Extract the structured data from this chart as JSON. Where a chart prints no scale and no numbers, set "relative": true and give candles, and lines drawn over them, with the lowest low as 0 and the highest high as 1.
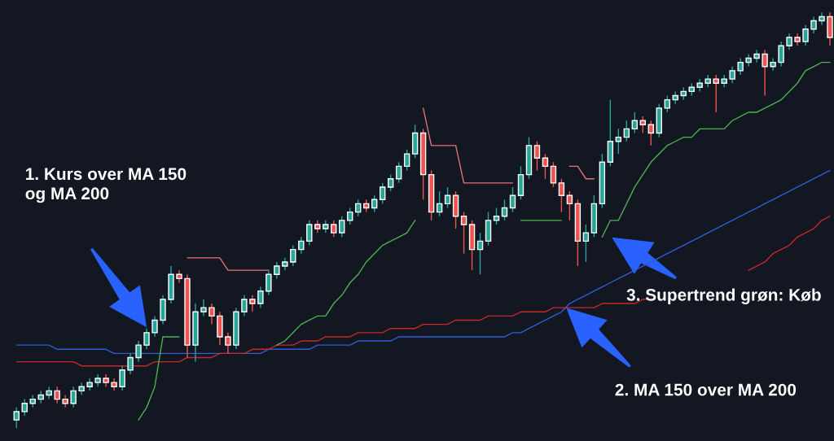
{
  "chart_data": {
    "type": "candlestick",
    "relative": true,
    "legend": false,
    "categories": [
      null,
      null,
      null,
      null,
      null,
      null,
      null,
      null,
      null,
      null,
      null,
      null,
      null,
      null,
      null,
      null,
      null,
      null,
      null,
      null,
      null,
      null,
      null,
      null,
      null,
      null,
      null,
      null,
      null,
      null,
      null,
      null,
      null,
      null,
      null,
      null,
      null,
      null,
      null,
      null,
      null,
      null,
      null,
      null,
      null,
      null,
      null,
      null,
      null,
      null,
      null,
      null,
      null,
      null,
      null,
      null,
      null,
      null,
      null,
      null,
      null,
      null,
      null,
      null,
      null,
      null,
      null,
      null,
      null,
      null,
      null,
      null,
      null,
      null,
      null,
      null,
      null,
      null,
      null,
      null,
      null,
      null,
      null,
      null,
      null,
      null,
      null,
      null,
      null,
      null,
      null,
      null,
      null,
      null,
      null,
      null,
      null,
      null,
      null,
      null,
      null
    ],
    "ohlc": [
      [
        0.02,
        0.05,
        0.0,
        0.04
      ],
      [
        0.04,
        0.07,
        0.03,
        0.06
      ],
      [
        0.06,
        0.08,
        0.05,
        0.07
      ],
      [
        0.07,
        0.09,
        0.06,
        0.08
      ],
      [
        0.08,
        0.1,
        0.07,
        0.09
      ],
      [
        0.09,
        0.1,
        0.06,
        0.07
      ],
      [
        0.07,
        0.08,
        0.05,
        0.06
      ],
      [
        0.06,
        0.1,
        0.05,
        0.09
      ],
      [
        0.09,
        0.11,
        0.08,
        0.1
      ],
      [
        0.1,
        0.12,
        0.09,
        0.11
      ],
      [
        0.11,
        0.13,
        0.1,
        0.12
      ],
      [
        0.12,
        0.13,
        0.1,
        0.11
      ],
      [
        0.11,
        0.12,
        0.09,
        0.1
      ],
      [
        0.1,
        0.15,
        0.09,
        0.14
      ],
      [
        0.14,
        0.18,
        0.13,
        0.17
      ],
      [
        0.17,
        0.21,
        0.16,
        0.2
      ],
      [
        0.2,
        0.24,
        0.19,
        0.23
      ],
      [
        0.23,
        0.27,
        0.22,
        0.26
      ],
      [
        0.26,
        0.32,
        0.25,
        0.31
      ],
      [
        0.31,
        0.39,
        0.3,
        0.37
      ],
      [
        0.37,
        0.38,
        0.35,
        0.36
      ],
      [
        0.36,
        0.37,
        0.17,
        0.2
      ],
      [
        0.2,
        0.3,
        0.16,
        0.28
      ],
      [
        0.28,
        0.31,
        0.27,
        0.29
      ],
      [
        0.29,
        0.3,
        0.25,
        0.27
      ],
      [
        0.27,
        0.28,
        0.2,
        0.22
      ],
      [
        0.22,
        0.23,
        0.18,
        0.2
      ],
      [
        0.2,
        0.29,
        0.19,
        0.28
      ],
      [
        0.28,
        0.32,
        0.27,
        0.31
      ],
      [
        0.31,
        0.32,
        0.28,
        0.3
      ],
      [
        0.3,
        0.34,
        0.29,
        0.33
      ],
      [
        0.33,
        0.38,
        0.32,
        0.37
      ],
      [
        0.37,
        0.4,
        0.36,
        0.39
      ],
      [
        0.39,
        0.41,
        0.38,
        0.4
      ],
      [
        0.4,
        0.44,
        0.39,
        0.43
      ],
      [
        0.43,
        0.46,
        0.42,
        0.45
      ],
      [
        0.45,
        0.5,
        0.44,
        0.49
      ],
      [
        0.49,
        0.5,
        0.47,
        0.48
      ],
      [
        0.48,
        0.5,
        0.47,
        0.49
      ],
      [
        0.49,
        0.5,
        0.46,
        0.47
      ],
      [
        0.47,
        0.51,
        0.46,
        0.5
      ],
      [
        0.5,
        0.53,
        0.49,
        0.52
      ],
      [
        0.52,
        0.55,
        0.51,
        0.54
      ],
      [
        0.54,
        0.55,
        0.52,
        0.53
      ],
      [
        0.53,
        0.56,
        0.52,
        0.55
      ],
      [
        0.55,
        0.59,
        0.54,
        0.58
      ],
      [
        0.58,
        0.61,
        0.57,
        0.6
      ],
      [
        0.6,
        0.64,
        0.59,
        0.63
      ],
      [
        0.63,
        0.67,
        0.62,
        0.66
      ],
      [
        0.66,
        0.73,
        0.65,
        0.71
      ],
      [
        0.71,
        0.72,
        0.55,
        0.61
      ],
      [
        0.61,
        0.62,
        0.5,
        0.52
      ],
      [
        0.52,
        0.57,
        0.51,
        0.54
      ],
      [
        0.54,
        0.58,
        0.53,
        0.56
      ],
      [
        0.56,
        0.57,
        0.48,
        0.51
      ],
      [
        0.51,
        0.52,
        0.42,
        0.49
      ],
      [
        0.49,
        0.5,
        0.38,
        0.43
      ],
      [
        0.43,
        0.47,
        0.37,
        0.45
      ],
      [
        0.45,
        0.52,
        0.44,
        0.5
      ],
      [
        0.5,
        0.53,
        0.49,
        0.51
      ],
      [
        0.51,
        0.55,
        0.5,
        0.53
      ],
      [
        0.53,
        0.58,
        0.52,
        0.56
      ],
      [
        0.56,
        0.63,
        0.55,
        0.61
      ],
      [
        0.61,
        0.7,
        0.6,
        0.68
      ],
      [
        0.68,
        0.69,
        0.62,
        0.65
      ],
      [
        0.65,
        0.66,
        0.6,
        0.63
      ],
      [
        0.63,
        0.64,
        0.58,
        0.59
      ],
      [
        0.59,
        0.6,
        0.52,
        0.56
      ],
      [
        0.56,
        0.57,
        0.5,
        0.54
      ],
      [
        0.54,
        0.55,
        0.39,
        0.45
      ],
      [
        0.45,
        0.49,
        0.4,
        0.47
      ],
      [
        0.47,
        0.56,
        0.46,
        0.54
      ],
      [
        0.54,
        0.66,
        0.53,
        0.64
      ],
      [
        0.64,
        0.79,
        0.63,
        0.69
      ],
      [
        0.69,
        0.72,
        0.66,
        0.7
      ],
      [
        0.7,
        0.74,
        0.69,
        0.72
      ],
      [
        0.72,
        0.76,
        0.71,
        0.74
      ],
      [
        0.74,
        0.75,
        0.71,
        0.73
      ],
      [
        0.73,
        0.74,
        0.68,
        0.71
      ],
      [
        0.71,
        0.78,
        0.7,
        0.77
      ],
      [
        0.77,
        0.8,
        0.76,
        0.79
      ],
      [
        0.79,
        0.81,
        0.78,
        0.8
      ],
      [
        0.8,
        0.82,
        0.79,
        0.81
      ],
      [
        0.81,
        0.83,
        0.8,
        0.82
      ],
      [
        0.82,
        0.84,
        0.81,
        0.83
      ],
      [
        0.83,
        0.85,
        0.82,
        0.84
      ],
      [
        0.84,
        0.85,
        0.76,
        0.83
      ],
      [
        0.83,
        0.85,
        0.82,
        0.84
      ],
      [
        0.84,
        0.87,
        0.83,
        0.86
      ],
      [
        0.86,
        0.89,
        0.85,
        0.88
      ],
      [
        0.88,
        0.9,
        0.87,
        0.89
      ],
      [
        0.89,
        0.91,
        0.88,
        0.9
      ],
      [
        0.9,
        0.91,
        0.8,
        0.87
      ],
      [
        0.87,
        0.89,
        0.86,
        0.88
      ],
      [
        0.88,
        0.93,
        0.87,
        0.92
      ],
      [
        0.92,
        0.95,
        0.91,
        0.94
      ],
      [
        0.94,
        0.95,
        0.92,
        0.93
      ],
      [
        0.93,
        0.97,
        0.92,
        0.96
      ],
      [
        0.96,
        0.99,
        0.95,
        0.98
      ],
      [
        0.98,
        1.0,
        0.97,
        0.99
      ],
      [
        0.99,
        1.0,
        0.92,
        0.94
      ]
    ],
    "series": [
      {
        "type": "line",
        "color": "#2f5bd8",
        "values": [
          0.2,
          0.2,
          0.2,
          0.2,
          0.2,
          0.19,
          0.19,
          0.19,
          0.19,
          0.19,
          0.19,
          0.19,
          0.18,
          0.18,
          0.18,
          0.18,
          0.18,
          0.18,
          0.18,
          0.18,
          0.18,
          0.18,
          0.18,
          0.18,
          0.18,
          0.18,
          0.18,
          0.18,
          0.18,
          0.18,
          0.18,
          0.19,
          0.19,
          0.19,
          0.19,
          0.19,
          0.19,
          0.2,
          0.2,
          0.2,
          0.2,
          0.2,
          0.21,
          0.21,
          0.21,
          0.21,
          0.21,
          0.22,
          0.22,
          0.22,
          0.22,
          0.22,
          0.22,
          0.22,
          0.22,
          0.22,
          0.22,
          0.22,
          0.22,
          0.22,
          0.22,
          0.23,
          0.23,
          0.24,
          0.25,
          0.26,
          0.27,
          0.28,
          0.3,
          0.31,
          0.32,
          0.33,
          0.34,
          0.35,
          0.36,
          0.37,
          0.38,
          0.39,
          0.4,
          0.41,
          0.42,
          0.43,
          0.44,
          0.45,
          0.46,
          0.47,
          0.48,
          0.49,
          0.5,
          0.51,
          0.52,
          0.53,
          0.54,
          0.55,
          0.56,
          0.57,
          0.58,
          0.59,
          0.6,
          0.61,
          0.62
        ]
      },
      {
        "type": "line",
        "color": "#c62828",
        "values": [
          0.16,
          0.16,
          0.16,
          0.16,
          0.16,
          0.16,
          0.16,
          0.16,
          0.15,
          0.15,
          0.15,
          0.15,
          0.15,
          0.15,
          0.15,
          0.15,
          0.15,
          0.16,
          0.16,
          0.16,
          0.16,
          0.17,
          0.17,
          0.17,
          0.17,
          0.18,
          0.18,
          0.18,
          0.18,
          0.19,
          0.19,
          0.19,
          0.2,
          0.2,
          0.2,
          0.21,
          0.21,
          0.21,
          0.22,
          0.22,
          0.22,
          0.22,
          0.23,
          0.23,
          0.23,
          0.23,
          0.24,
          0.24,
          0.24,
          0.24,
          0.25,
          0.25,
          0.25,
          0.25,
          0.26,
          0.26,
          0.26,
          0.26,
          0.27,
          0.27,
          0.27,
          0.27,
          0.28,
          0.28,
          0.28,
          0.28,
          0.29,
          0.29,
          0.29,
          0.29,
          0.29,
          0.29,
          0.3,
          0.3,
          0.3,
          0.3,
          0.3,
          0.31,
          0.31,
          null,
          null,
          null,
          null,
          null,
          null,
          null,
          null,
          null,
          null,
          null,
          0.38,
          0.39,
          0.4,
          0.42,
          0.43,
          0.44,
          0.46,
          0.47,
          0.48,
          0.5,
          0.51
        ]
      },
      {
        "type": "step",
        "color": "#4caf50",
        "values": [
          null,
          null,
          null,
          null,
          null,
          null,
          null,
          null,
          null,
          null,
          null,
          null,
          null,
          null,
          null,
          0.02,
          0.05,
          0.1,
          0.22,
          0.22,
          0.22,
          null,
          null,
          null,
          null,
          null,
          null,
          null,
          null,
          null,
          null,
          null,
          0.2,
          0.21,
          0.23,
          0.25,
          0.26,
          0.27,
          0.27,
          0.3,
          0.32,
          0.35,
          0.37,
          0.4,
          0.42,
          0.44,
          0.45,
          0.46,
          0.47,
          0.5,
          null,
          null,
          null,
          null,
          null,
          null,
          null,
          null,
          null,
          null,
          null,
          null,
          0.5,
          0.5,
          0.5,
          0.5,
          0.5,
          0.5,
          null,
          null,
          null,
          null,
          0.46,
          0.5,
          0.5,
          0.54,
          0.58,
          0.61,
          0.64,
          0.66,
          0.68,
          0.69,
          0.7,
          0.7,
          0.72,
          0.72,
          0.72,
          0.72,
          0.74,
          0.75,
          0.76,
          0.76,
          0.77,
          0.78,
          0.79,
          0.81,
          0.83,
          0.86,
          0.87,
          0.88,
          0.88
        ]
      },
      {
        "type": "step",
        "color": "#e57373",
        "values": [
          null,
          null,
          null,
          null,
          null,
          null,
          null,
          null,
          null,
          null,
          null,
          null,
          null,
          null,
          null,
          null,
          null,
          null,
          null,
          null,
          null,
          0.41,
          0.41,
          0.41,
          0.41,
          0.41,
          0.38,
          0.38,
          0.38,
          0.38,
          0.38,
          0.38,
          null,
          null,
          null,
          null,
          null,
          null,
          null,
          null,
          null,
          null,
          null,
          null,
          null,
          null,
          null,
          null,
          null,
          null,
          0.77,
          0.68,
          0.68,
          0.68,
          0.68,
          0.59,
          0.59,
          0.59,
          0.59,
          0.59,
          0.59,
          0.59,
          null,
          null,
          null,
          null,
          null,
          null,
          0.63,
          0.63,
          0.6,
          0.6,
          null,
          null,
          null,
          null,
          null,
          null,
          null,
          null,
          null,
          null,
          null,
          null,
          null,
          null,
          null,
          null,
          null,
          null,
          null,
          null,
          null,
          null,
          null,
          null,
          null,
          null,
          null,
          null,
          null
        ]
      }
    ],
    "annotations": [
      "1. Kurs over MA 150\nog MA 200",
      "3. Supertrend grøn: Køb",
      "2. MA 150 over MA 200"
    ]
  }
}
